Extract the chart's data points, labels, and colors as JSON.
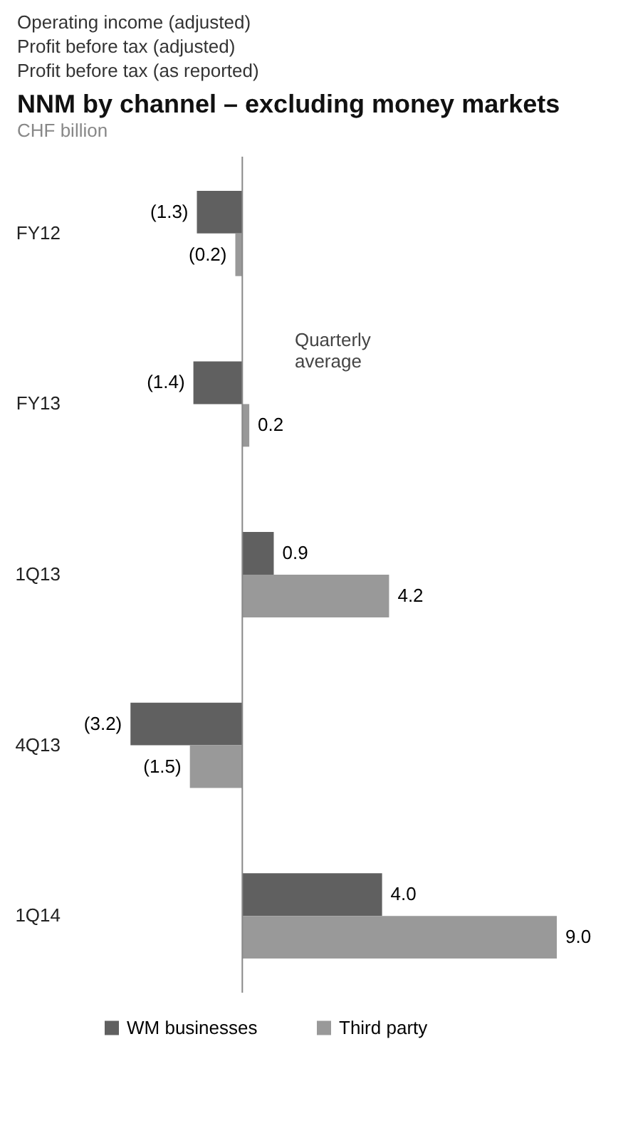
{
  "chart_data": {
    "type": "bar",
    "title": "NNM by channel – excluding money markets",
    "subtitle": "CHF billion",
    "categories": [
      "FY12",
      "FY13",
      "1Q13",
      "4Q13",
      "1Q14"
    ],
    "series": [
      {
        "name": "WM businesses",
        "color": "#606060",
        "values": [
          -1.3,
          -1.4,
          0.9,
          -3.2,
          4.0
        ],
        "value_labels": [
          "(1.3)",
          "(1.4)",
          "0.9",
          "(3.2)",
          "4.0"
        ]
      },
      {
        "name": "Third party",
        "color": "#999999",
        "values": [
          -0.2,
          0.2,
          4.2,
          -1.5,
          9.0
        ],
        "value_labels": [
          "(0.2)",
          "0.2",
          "4.2",
          "(1.5)",
          "9.0"
        ]
      }
    ],
    "orientation": "horizontal",
    "legend": "bottom",
    "grid": false,
    "annotations": [
      "Operating income (adjusted)",
      "Profit before tax (adjusted)",
      "Profit before tax (as reported)",
      "Quarterly average"
    ]
  }
}
